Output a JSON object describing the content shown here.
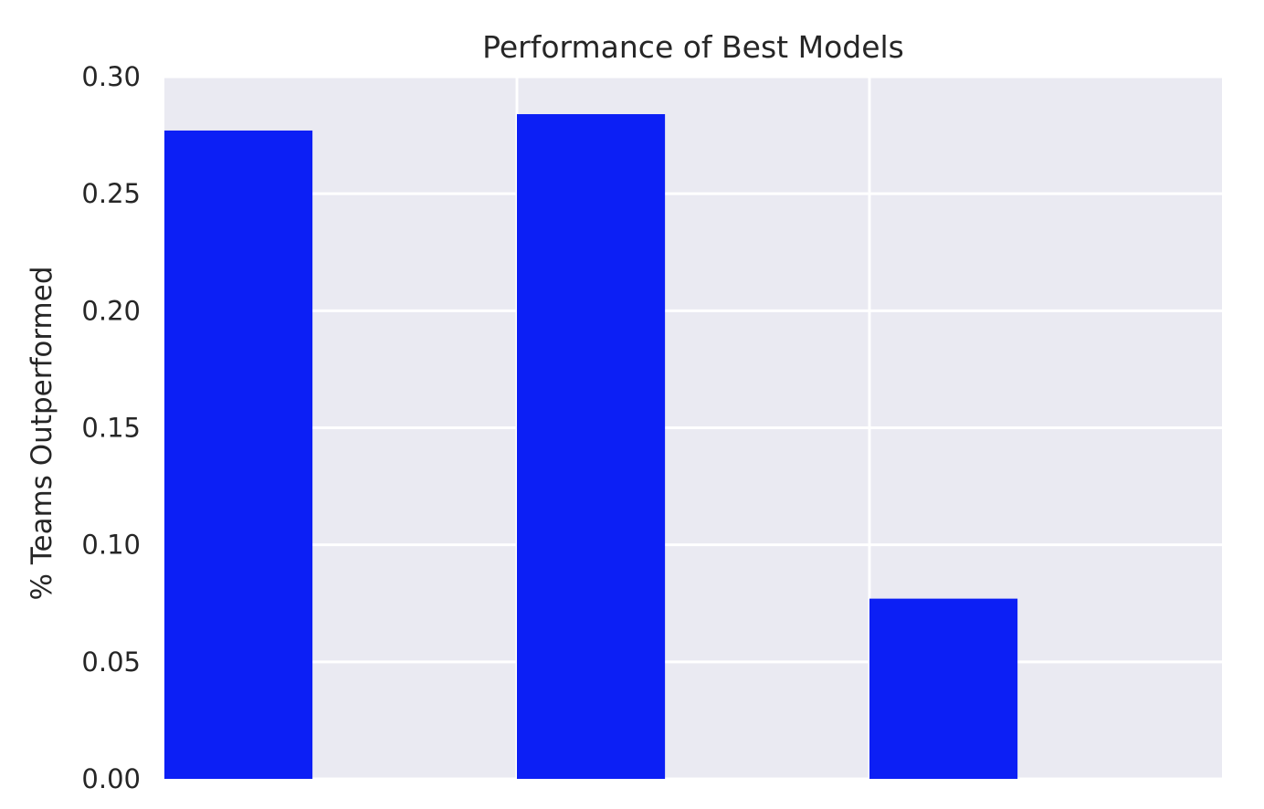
{
  "chart_data": {
    "type": "bar",
    "title": "Performance of Best Models",
    "xlabel": "",
    "ylabel": "% Teams Outperformed",
    "categories": [
      "",
      "",
      ""
    ],
    "values": [
      0.277,
      0.284,
      0.077
    ],
    "ylim": [
      0,
      0.3
    ],
    "yticks": [
      "0.00",
      "0.05",
      "0.10",
      "0.15",
      "0.20",
      "0.25",
      "0.30"
    ],
    "grid": true,
    "legend": "none",
    "colors": {
      "bar": "#0c1ff5",
      "plot_background": "#eaeaf2",
      "grid": "#ffffff"
    }
  }
}
